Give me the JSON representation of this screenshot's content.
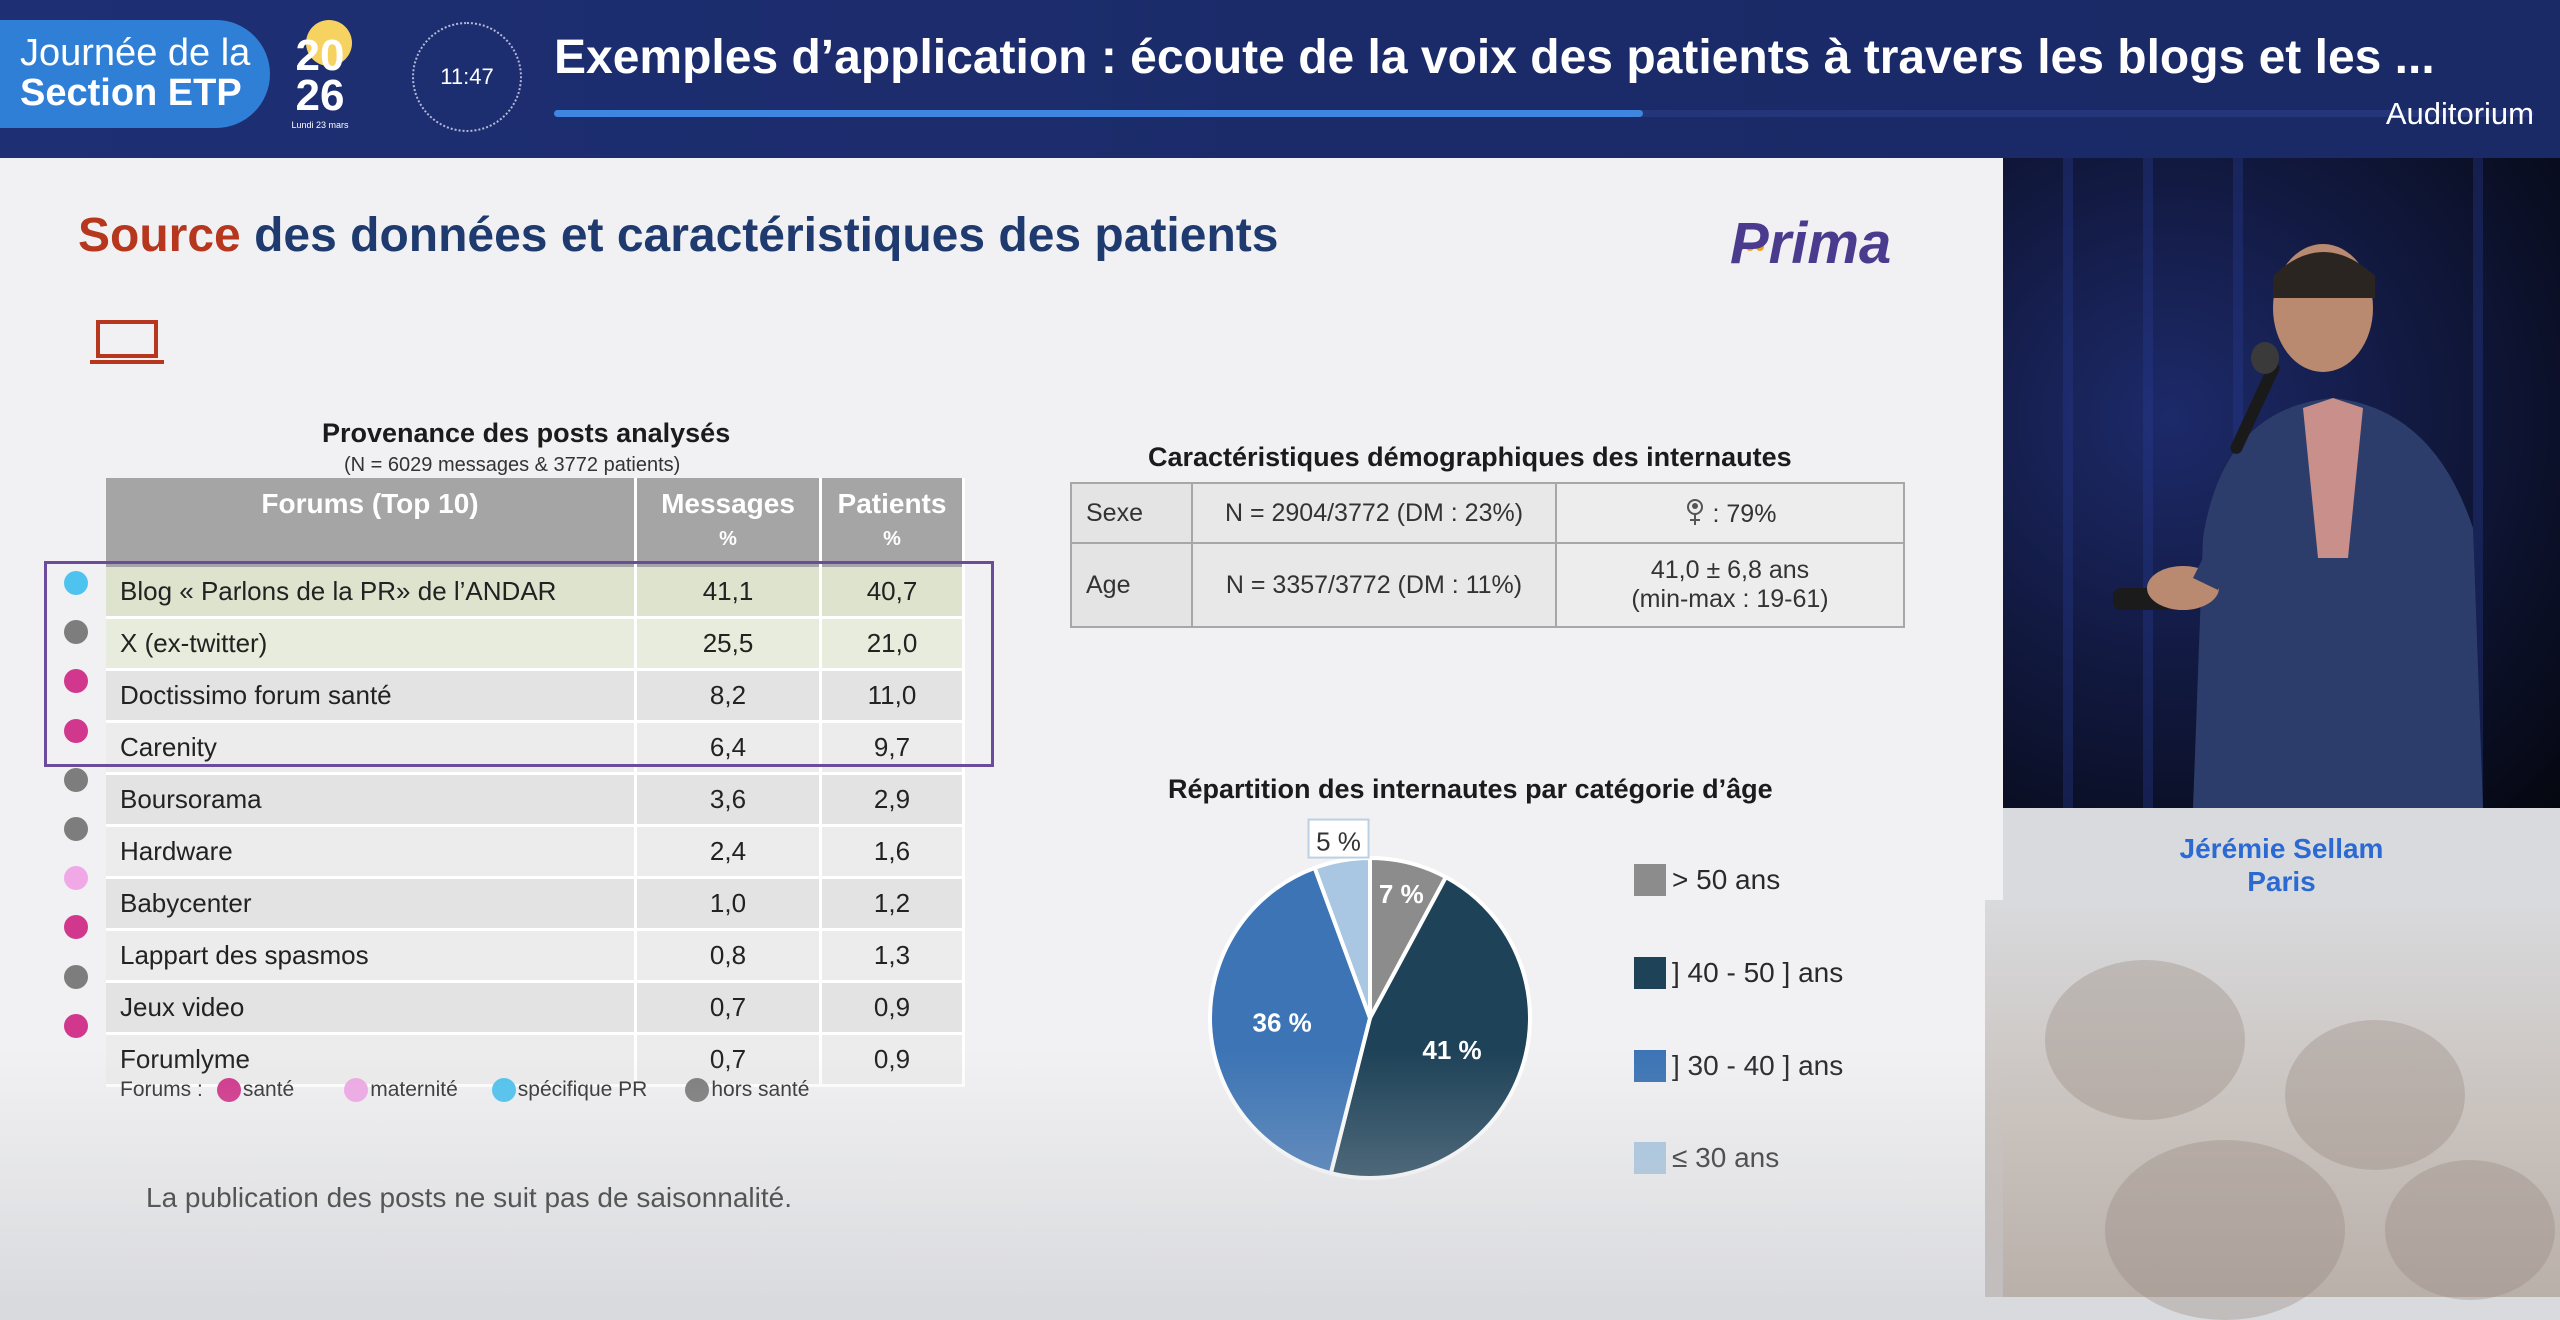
{
  "banner": {
    "logo_line1": "Journée de la",
    "logo_line2": "Section ETP",
    "year_top": "20",
    "year_bottom": "26",
    "year_sub": "Lundi 23 mars",
    "clock": "11:47",
    "title": "Exemples d’application : écoute de la voix des patients à travers les blogs et les ...",
    "progress_fraction": 0.55,
    "room": "Auditorium"
  },
  "slide": {
    "title_accent": "Source",
    "title_rest": " des données et caractéristiques des patients",
    "brand": "Prima",
    "laptop_icon": "laptop-icon",
    "posts": {
      "heading": "Provenance des posts analysés",
      "subheading": "(N = 6029 messages & 3772 patients)",
      "columns": [
        {
          "label": "Forums (Top 10)",
          "unit": ""
        },
        {
          "label": "Messages",
          "unit": "%"
        },
        {
          "label": "Patients",
          "unit": "%"
        }
      ],
      "rows": [
        {
          "forum": "Blog « Parlons de la PR» de l’ANDAR",
          "messages": "41,1",
          "patients": "40,7",
          "category": "specifique"
        },
        {
          "forum": "X (ex-twitter)",
          "messages": "25,5",
          "patients": "21,0",
          "category": "hors"
        },
        {
          "forum": "Doctissimo forum santé",
          "messages": "8,2",
          "patients": "11,0",
          "category": "sante"
        },
        {
          "forum": "Carenity",
          "messages": "6,4",
          "patients": "9,7",
          "category": "sante"
        },
        {
          "forum": "Boursorama",
          "messages": "3,6",
          "patients": "2,9",
          "category": "hors"
        },
        {
          "forum": "Hardware",
          "messages": "2,4",
          "patients": "1,6",
          "category": "hors"
        },
        {
          "forum": "Babycenter",
          "messages": "1,0",
          "patients": "1,2",
          "category": "maternite"
        },
        {
          "forum": "Lappart des spasmos",
          "messages": "0,8",
          "patients": "1,3",
          "category": "sante"
        },
        {
          "forum": "Jeux video",
          "messages": "0,7",
          "patients": "0,9",
          "category": "hors"
        },
        {
          "forum": "Forumlyme",
          "messages": "0,7",
          "patients": "0,9",
          "category": "sante"
        }
      ],
      "legend_prefix": "Forums :",
      "legend": [
        {
          "key": "sante",
          "label": "santé",
          "color": "#d1378c"
        },
        {
          "key": "maternite",
          "label": "maternité",
          "color": "#f0a9e6"
        },
        {
          "key": "specifique",
          "label": "spécifique PR",
          "color": "#4fc3ef"
        },
        {
          "key": "hors",
          "label": "hors santé",
          "color": "#7d7d7d"
        }
      ],
      "footnote": "La publication des posts ne suit pas de saisonnalité."
    },
    "demographics": {
      "heading": "Caractéristiques démographiques des internautes",
      "rows": [
        {
          "label": "Sexe",
          "n": "N = 2904/3772 (DM : 23%)",
          "value": " : 79%",
          "icon": "female-icon"
        },
        {
          "label": "Age",
          "n": "N = 3357/3772 (DM : 11%)",
          "value_line1": "41,0 ± 6,8 ans",
          "value_line2": "(min-max : 19-61)"
        }
      ]
    },
    "age_pie": {
      "heading": "Répartition des internautes par catégorie d’âge"
    }
  },
  "chart_data": {
    "type": "pie",
    "title": "Répartition des internautes par catégorie d’âge",
    "categories": [
      "> 50 ans",
      "] 40 - 50 ] ans",
      "] 30 - 40 ] ans",
      "≤ 30 ans"
    ],
    "values": [
      7,
      41,
      36,
      5
    ],
    "data_labels": [
      "7 %",
      "41 %",
      "36 %",
      "5 %"
    ],
    "colors": [
      "#8c8c8c",
      "#1e4258",
      "#3c74b5",
      "#a9c7e2"
    ],
    "legend": "right"
  },
  "speaker": {
    "name": "Jérémie Sellam",
    "city": "Paris"
  }
}
